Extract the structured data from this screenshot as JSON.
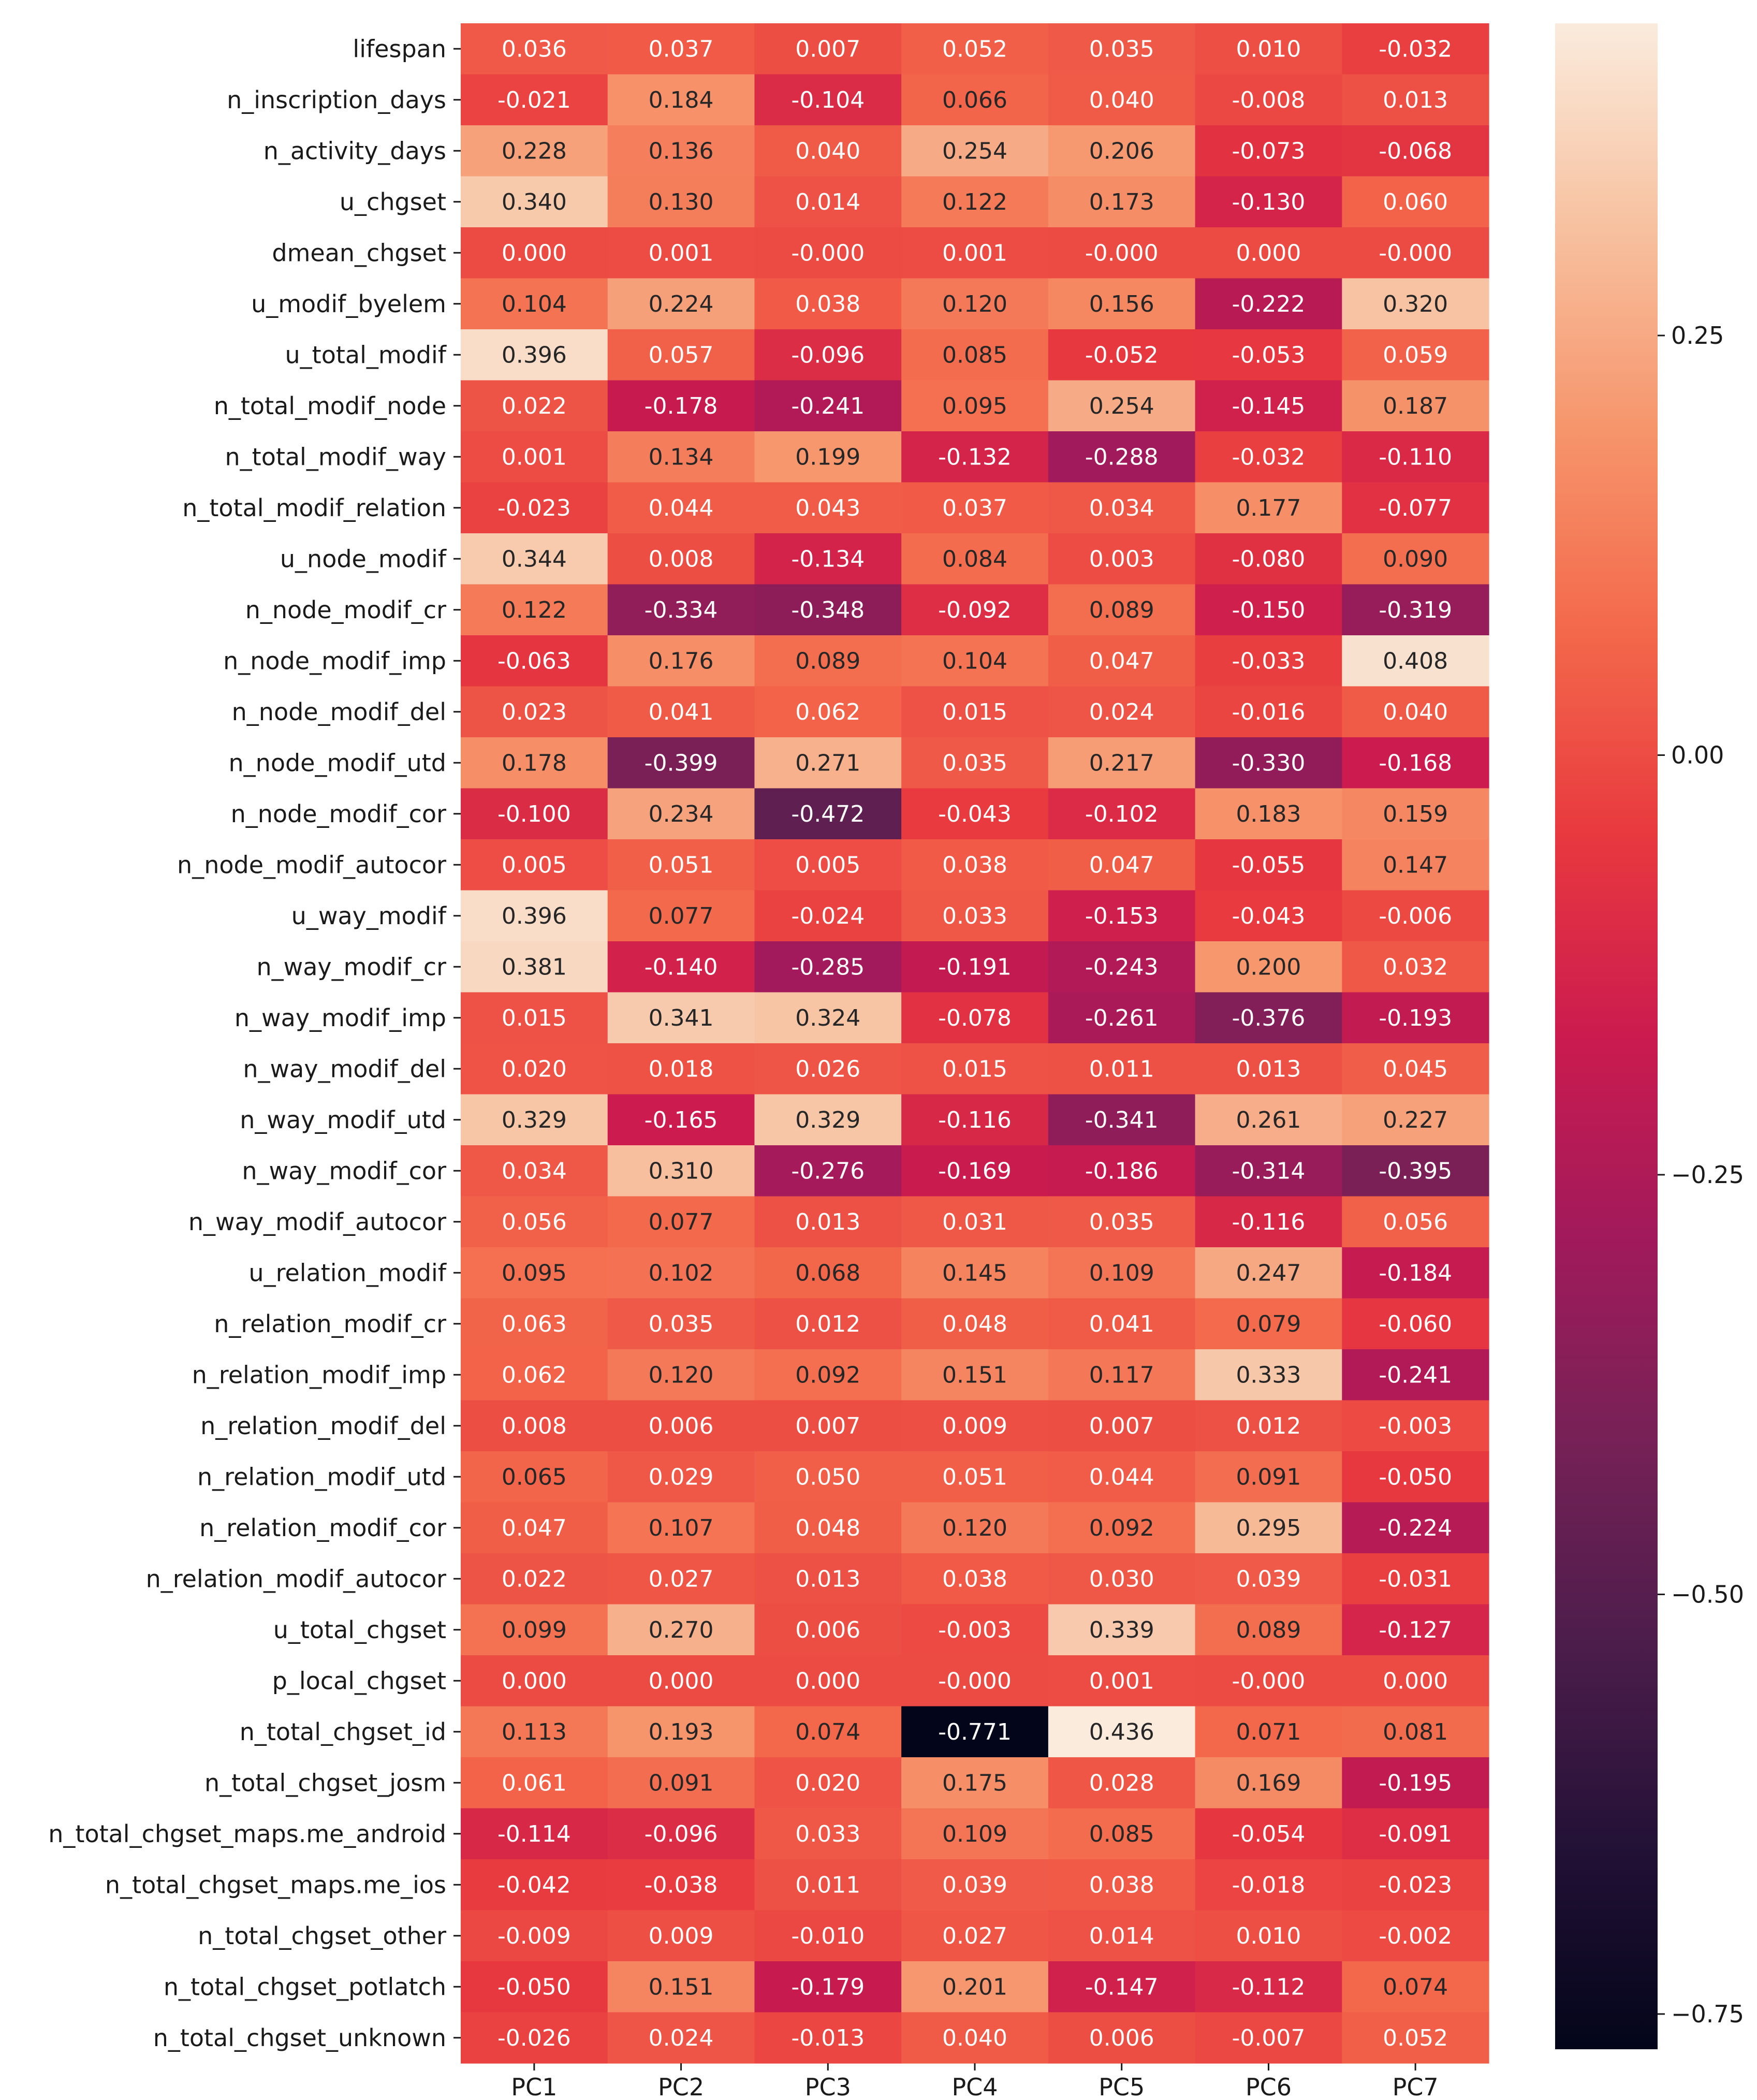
{
  "chart_data": {
    "type": "heatmap",
    "title": "",
    "xlabel": "",
    "ylabel": "",
    "columns": [
      "PC1",
      "PC2",
      "PC3",
      "PC4",
      "PC5",
      "PC6",
      "PC7"
    ],
    "rows": [
      "lifespan",
      "n_inscription_days",
      "n_activity_days",
      "u_chgset",
      "dmean_chgset",
      "u_modif_byelem",
      "u_total_modif",
      "n_total_modif_node",
      "n_total_modif_way",
      "n_total_modif_relation",
      "u_node_modif",
      "n_node_modif_cr",
      "n_node_modif_imp",
      "n_node_modif_del",
      "n_node_modif_utd",
      "n_node_modif_cor",
      "n_node_modif_autocor",
      "u_way_modif",
      "n_way_modif_cr",
      "n_way_modif_imp",
      "n_way_modif_del",
      "n_way_modif_utd",
      "n_way_modif_cor",
      "n_way_modif_autocor",
      "u_relation_modif",
      "n_relation_modif_cr",
      "n_relation_modif_imp",
      "n_relation_modif_del",
      "n_relation_modif_utd",
      "n_relation_modif_cor",
      "n_relation_modif_autocor",
      "u_total_chgset",
      "p_local_chgset",
      "n_total_chgset_id",
      "n_total_chgset_josm",
      "n_total_chgset_maps.me_android",
      "n_total_chgset_maps.me_ios",
      "n_total_chgset_other",
      "n_total_chgset_potlatch",
      "n_total_chgset_unknown"
    ],
    "cells": [
      [
        "0.036",
        "0.037",
        "0.007",
        "0.052",
        "0.035",
        "0.010",
        "-0.032"
      ],
      [
        "-0.021",
        "0.184",
        "-0.104",
        "0.066",
        "0.040",
        "-0.008",
        "0.013"
      ],
      [
        "0.228",
        "0.136",
        "0.040",
        "0.254",
        "0.206",
        "-0.073",
        "-0.068"
      ],
      [
        "0.340",
        "0.130",
        "0.014",
        "0.122",
        "0.173",
        "-0.130",
        "0.060"
      ],
      [
        "0.000",
        "0.001",
        "-0.000",
        "0.001",
        "-0.000",
        "0.000",
        "-0.000"
      ],
      [
        "0.104",
        "0.224",
        "0.038",
        "0.120",
        "0.156",
        "-0.222",
        "0.320"
      ],
      [
        "0.396",
        "0.057",
        "-0.096",
        "0.085",
        "-0.052",
        "-0.053",
        "0.059"
      ],
      [
        "0.022",
        "-0.178",
        "-0.241",
        "0.095",
        "0.254",
        "-0.145",
        "0.187"
      ],
      [
        "0.001",
        "0.134",
        "0.199",
        "-0.132",
        "-0.288",
        "-0.032",
        "-0.110"
      ],
      [
        "-0.023",
        "0.044",
        "0.043",
        "0.037",
        "0.034",
        "0.177",
        "-0.077"
      ],
      [
        "0.344",
        "0.008",
        "-0.134",
        "0.084",
        "0.003",
        "-0.080",
        "0.090"
      ],
      [
        "0.122",
        "-0.334",
        "-0.348",
        "-0.092",
        "0.089",
        "-0.150",
        "-0.319"
      ],
      [
        "-0.063",
        "0.176",
        "0.089",
        "0.104",
        "0.047",
        "-0.033",
        "0.408"
      ],
      [
        "0.023",
        "0.041",
        "0.062",
        "0.015",
        "0.024",
        "-0.016",
        "0.040"
      ],
      [
        "0.178",
        "-0.399",
        "0.271",
        "0.035",
        "0.217",
        "-0.330",
        "-0.168"
      ],
      [
        "-0.100",
        "0.234",
        "-0.472",
        "-0.043",
        "-0.102",
        "0.183",
        "0.159"
      ],
      [
        "0.005",
        "0.051",
        "0.005",
        "0.038",
        "0.047",
        "-0.055",
        "0.147"
      ],
      [
        "0.396",
        "0.077",
        "-0.024",
        "0.033",
        "-0.153",
        "-0.043",
        "-0.006"
      ],
      [
        "0.381",
        "-0.140",
        "-0.285",
        "-0.191",
        "-0.243",
        "0.200",
        "0.032"
      ],
      [
        "0.015",
        "0.341",
        "0.324",
        "-0.078",
        "-0.261",
        "-0.376",
        "-0.193"
      ],
      [
        "0.020",
        "0.018",
        "0.026",
        "0.015",
        "0.011",
        "0.013",
        "0.045"
      ],
      [
        "0.329",
        "-0.165",
        "0.329",
        "-0.116",
        "-0.341",
        "0.261",
        "0.227"
      ],
      [
        "0.034",
        "0.310",
        "-0.276",
        "-0.169",
        "-0.186",
        "-0.314",
        "-0.395"
      ],
      [
        "0.056",
        "0.077",
        "0.013",
        "0.031",
        "0.035",
        "-0.116",
        "0.056"
      ],
      [
        "0.095",
        "0.102",
        "0.068",
        "0.145",
        "0.109",
        "0.247",
        "-0.184"
      ],
      [
        "0.063",
        "0.035",
        "0.012",
        "0.048",
        "0.041",
        "0.079",
        "-0.060"
      ],
      [
        "0.062",
        "0.120",
        "0.092",
        "0.151",
        "0.117",
        "0.333",
        "-0.241"
      ],
      [
        "0.008",
        "0.006",
        "0.007",
        "0.009",
        "0.007",
        "0.012",
        "-0.003"
      ],
      [
        "0.065",
        "0.029",
        "0.050",
        "0.051",
        "0.044",
        "0.091",
        "-0.050"
      ],
      [
        "0.047",
        "0.107",
        "0.048",
        "0.120",
        "0.092",
        "0.295",
        "-0.224"
      ],
      [
        "0.022",
        "0.027",
        "0.013",
        "0.038",
        "0.030",
        "0.039",
        "-0.031"
      ],
      [
        "0.099",
        "0.270",
        "0.006",
        "-0.003",
        "0.339",
        "0.089",
        "-0.127"
      ],
      [
        "0.000",
        "0.000",
        "0.000",
        "-0.000",
        "0.001",
        "-0.000",
        "0.000"
      ],
      [
        "0.113",
        "0.193",
        "0.074",
        "-0.771",
        "0.436",
        "0.071",
        "0.081"
      ],
      [
        "0.061",
        "0.091",
        "0.020",
        "0.175",
        "0.028",
        "0.169",
        "-0.195"
      ],
      [
        "-0.114",
        "-0.096",
        "0.033",
        "0.109",
        "0.085",
        "-0.054",
        "-0.091"
      ],
      [
        "-0.042",
        "-0.038",
        "0.011",
        "0.039",
        "0.038",
        "-0.018",
        "-0.023"
      ],
      [
        "-0.009",
        "0.009",
        "-0.010",
        "0.027",
        "0.014",
        "0.010",
        "-0.002"
      ],
      [
        "-0.050",
        "0.151",
        "-0.179",
        "0.201",
        "-0.147",
        "-0.112",
        "0.074"
      ],
      [
        "-0.026",
        "0.024",
        "-0.013",
        "0.040",
        "0.006",
        "-0.007",
        "0.052"
      ]
    ],
    "colorbar": {
      "vmin": -0.771,
      "vmax": 0.436,
      "ticks": [
        0.25,
        0.0,
        -0.25,
        -0.5,
        -0.75
      ],
      "tick_labels": [
        "0.25",
        "0.00",
        "−0.25",
        "−0.50",
        "−0.75"
      ],
      "colormap": "rocket"
    },
    "annotations": "cell values shown in each cell",
    "grid": false
  }
}
